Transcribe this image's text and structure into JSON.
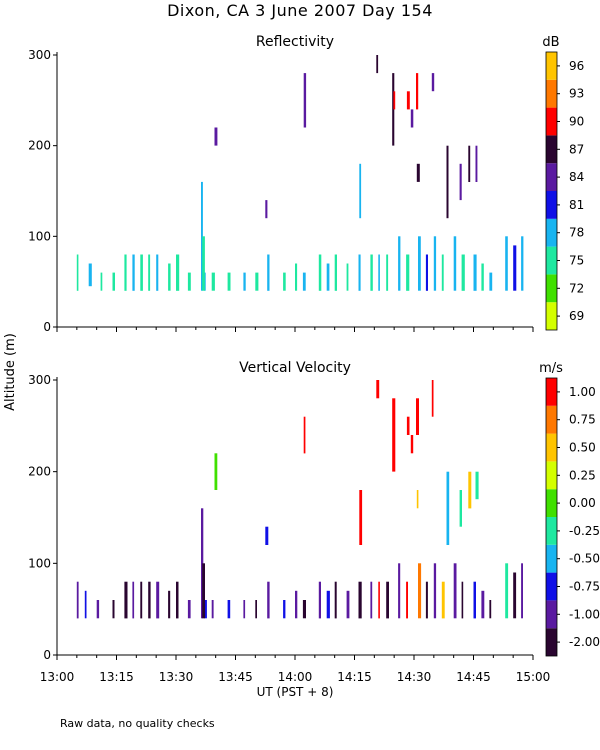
{
  "figure_title": "Dixon, CA   3 June 2007   Day 154",
  "ylabel": "Altitude (m)",
  "xlabel": "UT  (PST + 8)",
  "footer_note": "Raw data, no quality checks",
  "chart_data": [
    {
      "type": "heatmap",
      "title": "Reflectivity",
      "xlabel": "UT  (PST + 8)",
      "ylabel": "Altitude (m)",
      "x_range_min": [
        780,
        900
      ],
      "ylim": [
        0,
        300
      ],
      "y_ticks": [
        0,
        100,
        200,
        300
      ],
      "colorbar": {
        "unit": "dB",
        "levels": [
          69,
          72,
          75,
          78,
          81,
          84,
          87,
          90,
          93,
          96
        ],
        "colors": [
          "#d4ff00",
          "#40e000",
          "#1ee8a0",
          "#18b4f0",
          "#1010e6",
          "#5a1aa0",
          "#2a0530",
          "#ff0000",
          "#ff7800",
          "#ffc400"
        ]
      },
      "clutter_band_range": [
        40,
        80
      ],
      "features": [
        {
          "t": 785,
          "y0": 40,
          "y1": 80,
          "color": "#1ee8a0"
        },
        {
          "t": 788,
          "y0": 45,
          "y1": 70,
          "color": "#18b4f0"
        },
        {
          "t": 791,
          "y0": 40,
          "y1": 60,
          "color": "#1ee8a0"
        },
        {
          "t": 794,
          "y0": 40,
          "y1": 60,
          "color": "#1ee8a0"
        },
        {
          "t": 797,
          "y0": 40,
          "y1": 80,
          "color": "#1ee8a0"
        },
        {
          "t": 799,
          "y0": 40,
          "y1": 80,
          "color": "#18b4f0"
        },
        {
          "t": 801,
          "y0": 40,
          "y1": 80,
          "color": "#1ee8a0"
        },
        {
          "t": 803,
          "y0": 40,
          "y1": 80,
          "color": "#1ee8a0"
        },
        {
          "t": 805,
          "y0": 40,
          "y1": 80,
          "color": "#18b4f0"
        },
        {
          "t": 808,
          "y0": 40,
          "y1": 70,
          "color": "#1ee8a0"
        },
        {
          "t": 810,
          "y0": 40,
          "y1": 80,
          "color": "#1ee8a0"
        },
        {
          "t": 813,
          "y0": 40,
          "y1": 60,
          "color": "#1ee8a0"
        },
        {
          "t": 817,
          "y0": 40,
          "y1": 60,
          "color": "#18b4f0"
        },
        {
          "t": 819,
          "y0": 40,
          "y1": 60,
          "color": "#1ee8a0"
        },
        {
          "t": 823,
          "y0": 40,
          "y1": 60,
          "color": "#1ee8a0"
        },
        {
          "t": 827,
          "y0": 40,
          "y1": 60,
          "color": "#18b4f0"
        },
        {
          "t": 830,
          "y0": 40,
          "y1": 60,
          "color": "#1ee8a0"
        },
        {
          "t": 833,
          "y0": 40,
          "y1": 80,
          "color": "#18b4f0"
        },
        {
          "t": 837,
          "y0": 40,
          "y1": 60,
          "color": "#1ee8a0"
        },
        {
          "t": 840,
          "y0": 40,
          "y1": 70,
          "color": "#1ee8a0"
        },
        {
          "t": 842,
          "y0": 40,
          "y1": 60,
          "color": "#18b4f0"
        },
        {
          "t": 846,
          "y0": 40,
          "y1": 80,
          "color": "#1ee8a0"
        },
        {
          "t": 848,
          "y0": 40,
          "y1": 70,
          "color": "#18b4f0"
        },
        {
          "t": 850,
          "y0": 40,
          "y1": 80,
          "color": "#1ee8a0"
        },
        {
          "t": 853,
          "y0": 40,
          "y1": 70,
          "color": "#1ee8a0"
        },
        {
          "t": 856,
          "y0": 40,
          "y1": 80,
          "color": "#18b4f0"
        },
        {
          "t": 859,
          "y0": 40,
          "y1": 80,
          "color": "#1ee8a0"
        },
        {
          "t": 861,
          "y0": 40,
          "y1": 80,
          "color": "#18b4f0"
        },
        {
          "t": 863,
          "y0": 40,
          "y1": 80,
          "color": "#1ee8a0"
        },
        {
          "t": 866,
          "y0": 40,
          "y1": 100,
          "color": "#18b4f0"
        },
        {
          "t": 868,
          "y0": 40,
          "y1": 80,
          "color": "#1ee8a0"
        },
        {
          "t": 871,
          "y0": 40,
          "y1": 100,
          "color": "#18b4f0"
        },
        {
          "t": 873,
          "y0": 40,
          "y1": 80,
          "color": "#1010e6"
        },
        {
          "t": 875,
          "y0": 40,
          "y1": 100,
          "color": "#18b4f0"
        },
        {
          "t": 877,
          "y0": 40,
          "y1": 80,
          "color": "#1ee8a0"
        },
        {
          "t": 880,
          "y0": 40,
          "y1": 100,
          "color": "#18b4f0"
        },
        {
          "t": 882,
          "y0": 40,
          "y1": 80,
          "color": "#1ee8a0"
        },
        {
          "t": 885,
          "y0": 40,
          "y1": 80,
          "color": "#18b4f0"
        },
        {
          "t": 887,
          "y0": 40,
          "y1": 70,
          "color": "#1ee8a0"
        },
        {
          "t": 889,
          "y0": 40,
          "y1": 60,
          "color": "#18b4f0"
        },
        {
          "t": 893,
          "y0": 40,
          "y1": 100,
          "color": "#18b4f0"
        },
        {
          "t": 895,
          "y0": 40,
          "y1": 90,
          "color": "#1010e6"
        },
        {
          "t": 897,
          "y0": 40,
          "y1": 100,
          "color": "#18b4f0"
        },
        {
          "t": 816.3,
          "y0": 40,
          "y1": 160,
          "color": "#18b4f0"
        },
        {
          "t": 816.6,
          "y0": 40,
          "y1": 100,
          "color": "#1ee8a0"
        },
        {
          "t": 819.7,
          "y0": 200,
          "y1": 220,
          "color": "#5a1aa0"
        },
        {
          "t": 832.5,
          "y0": 120,
          "y1": 140,
          "color": "#5a1aa0"
        },
        {
          "t": 842.2,
          "y0": 220,
          "y1": 280,
          "color": "#5a1aa0"
        },
        {
          "t": 856.2,
          "y0": 120,
          "y1": 180,
          "color": "#18b4f0"
        },
        {
          "t": 860.5,
          "y0": 280,
          "y1": 300,
          "color": "#2a0530"
        },
        {
          "t": 864.5,
          "y0": 200,
          "y1": 280,
          "color": "#2a0530"
        },
        {
          "t": 864.8,
          "y0": 240,
          "y1": 260,
          "color": "#ff0000"
        },
        {
          "t": 868.2,
          "y0": 240,
          "y1": 260,
          "color": "#ff0000"
        },
        {
          "t": 869.2,
          "y0": 220,
          "y1": 240,
          "color": "#5a1aa0"
        },
        {
          "t": 870.5,
          "y0": 240,
          "y1": 280,
          "color": "#ff0000"
        },
        {
          "t": 870.7,
          "y0": 160,
          "y1": 180,
          "color": "#2a0530"
        },
        {
          "t": 874.5,
          "y0": 260,
          "y1": 280,
          "color": "#5a1aa0"
        },
        {
          "t": 878.2,
          "y0": 120,
          "y1": 200,
          "color": "#2a0530"
        },
        {
          "t": 881.5,
          "y0": 140,
          "y1": 180,
          "color": "#5a1aa0"
        },
        {
          "t": 883.7,
          "y0": 160,
          "y1": 200,
          "color": "#2a0530"
        },
        {
          "t": 885.5,
          "y0": 160,
          "y1": 200,
          "color": "#5a1aa0"
        }
      ]
    },
    {
      "type": "heatmap",
      "title": "Vertical Velocity",
      "xlabel": "UT  (PST + 8)",
      "ylabel": "Altitude (m)",
      "x_range_min": [
        780,
        900
      ],
      "ylim": [
        0,
        300
      ],
      "y_ticks": [
        0,
        100,
        200,
        300
      ],
      "x_tick_values_min": [
        780,
        795,
        810,
        825,
        840,
        855,
        870,
        885,
        900
      ],
      "x_tick_labels": [
        "13:00",
        "13:15",
        "13:30",
        "13:45",
        "14:00",
        "14:15",
        "14:30",
        "14:45",
        "15:00"
      ],
      "colorbar": {
        "unit": "m/s",
        "levels": [
          -2.0,
          -1.0,
          -0.75,
          -0.5,
          -0.25,
          0.0,
          0.25,
          0.5,
          0.75,
          1.0
        ],
        "tick_labels": [
          "-2.00",
          "-1.00",
          "-0.75",
          "-0.50",
          "-0.25",
          "0.00",
          "0.25",
          "0.50",
          "0.75",
          "1.00"
        ],
        "colors": [
          "#2a0530",
          "#5a1aa0",
          "#1010e6",
          "#18b4f0",
          "#1ee8a0",
          "#40e000",
          "#d4ff00",
          "#ffc400",
          "#ff7800",
          "#ff0000"
        ]
      },
      "clutter_band_range": [
        40,
        80
      ],
      "features": [
        {
          "t": 785,
          "y0": 40,
          "y1": 80,
          "color": "#5a1aa0"
        },
        {
          "t": 787,
          "y0": 40,
          "y1": 70,
          "color": "#1010e6"
        },
        {
          "t": 790,
          "y0": 40,
          "y1": 60,
          "color": "#5a1aa0"
        },
        {
          "t": 794,
          "y0": 40,
          "y1": 60,
          "color": "#2a0530"
        },
        {
          "t": 797,
          "y0": 40,
          "y1": 80,
          "color": "#2a0530"
        },
        {
          "t": 799,
          "y0": 40,
          "y1": 80,
          "color": "#5a1aa0"
        },
        {
          "t": 801,
          "y0": 40,
          "y1": 80,
          "color": "#2a0530"
        },
        {
          "t": 803,
          "y0": 40,
          "y1": 80,
          "color": "#2a0530"
        },
        {
          "t": 805,
          "y0": 40,
          "y1": 80,
          "color": "#5a1aa0"
        },
        {
          "t": 808,
          "y0": 40,
          "y1": 70,
          "color": "#2a0530"
        },
        {
          "t": 810,
          "y0": 40,
          "y1": 80,
          "color": "#2a0530"
        },
        {
          "t": 813,
          "y0": 40,
          "y1": 60,
          "color": "#5a1aa0"
        },
        {
          "t": 817,
          "y0": 40,
          "y1": 60,
          "color": "#1010e6"
        },
        {
          "t": 819,
          "y0": 40,
          "y1": 60,
          "color": "#5a1aa0"
        },
        {
          "t": 823,
          "y0": 40,
          "y1": 60,
          "color": "#1010e6"
        },
        {
          "t": 827,
          "y0": 40,
          "y1": 60,
          "color": "#5a1aa0"
        },
        {
          "t": 830,
          "y0": 40,
          "y1": 60,
          "color": "#2a0530"
        },
        {
          "t": 833,
          "y0": 40,
          "y1": 80,
          "color": "#5a1aa0"
        },
        {
          "t": 837,
          "y0": 40,
          "y1": 60,
          "color": "#1010e6"
        },
        {
          "t": 840,
          "y0": 40,
          "y1": 70,
          "color": "#5a1aa0"
        },
        {
          "t": 842,
          "y0": 40,
          "y1": 60,
          "color": "#2a0530"
        },
        {
          "t": 846,
          "y0": 40,
          "y1": 80,
          "color": "#5a1aa0"
        },
        {
          "t": 848,
          "y0": 40,
          "y1": 70,
          "color": "#1010e6"
        },
        {
          "t": 850,
          "y0": 40,
          "y1": 80,
          "color": "#2a0530"
        },
        {
          "t": 853,
          "y0": 40,
          "y1": 70,
          "color": "#5a1aa0"
        },
        {
          "t": 856,
          "y0": 40,
          "y1": 80,
          "color": "#2a0530"
        },
        {
          "t": 859,
          "y0": 40,
          "y1": 80,
          "color": "#5a1aa0"
        },
        {
          "t": 861,
          "y0": 40,
          "y1": 80,
          "color": "#ff0000"
        },
        {
          "t": 863,
          "y0": 40,
          "y1": 80,
          "color": "#2a0530"
        },
        {
          "t": 866,
          "y0": 40,
          "y1": 100,
          "color": "#5a1aa0"
        },
        {
          "t": 868,
          "y0": 40,
          "y1": 80,
          "color": "#ff0000"
        },
        {
          "t": 871,
          "y0": 40,
          "y1": 100,
          "color": "#ff7800"
        },
        {
          "t": 873,
          "y0": 40,
          "y1": 80,
          "color": "#2a0530"
        },
        {
          "t": 875,
          "y0": 40,
          "y1": 100,
          "color": "#5a1aa0"
        },
        {
          "t": 877,
          "y0": 40,
          "y1": 80,
          "color": "#ffc400"
        },
        {
          "t": 880,
          "y0": 40,
          "y1": 100,
          "color": "#5a1aa0"
        },
        {
          "t": 882,
          "y0": 40,
          "y1": 80,
          "color": "#2a0530"
        },
        {
          "t": 885,
          "y0": 40,
          "y1": 80,
          "color": "#1010e6"
        },
        {
          "t": 887,
          "y0": 40,
          "y1": 70,
          "color": "#5a1aa0"
        },
        {
          "t": 889,
          "y0": 40,
          "y1": 60,
          "color": "#2a0530"
        },
        {
          "t": 893,
          "y0": 40,
          "y1": 100,
          "color": "#1ee8a0"
        },
        {
          "t": 895,
          "y0": 40,
          "y1": 90,
          "color": "#2a0530"
        },
        {
          "t": 897,
          "y0": 40,
          "y1": 100,
          "color": "#5a1aa0"
        },
        {
          "t": 816.3,
          "y0": 40,
          "y1": 160,
          "color": "#5a1aa0"
        },
        {
          "t": 816.6,
          "y0": 40,
          "y1": 100,
          "color": "#2a0530"
        },
        {
          "t": 819.7,
          "y0": 180,
          "y1": 220,
          "color": "#40e000"
        },
        {
          "t": 832.5,
          "y0": 120,
          "y1": 140,
          "color": "#1010e6"
        },
        {
          "t": 842.2,
          "y0": 220,
          "y1": 260,
          "color": "#ff0000"
        },
        {
          "t": 856.2,
          "y0": 120,
          "y1": 180,
          "color": "#ff0000"
        },
        {
          "t": 860.5,
          "y0": 280,
          "y1": 300,
          "color": "#ff0000"
        },
        {
          "t": 864.5,
          "y0": 200,
          "y1": 280,
          "color": "#ff0000"
        },
        {
          "t": 868.2,
          "y0": 240,
          "y1": 260,
          "color": "#ff0000"
        },
        {
          "t": 869.2,
          "y0": 220,
          "y1": 240,
          "color": "#ff0000"
        },
        {
          "t": 870.5,
          "y0": 240,
          "y1": 280,
          "color": "#ff0000"
        },
        {
          "t": 870.7,
          "y0": 160,
          "y1": 180,
          "color": "#ffc400"
        },
        {
          "t": 874.5,
          "y0": 260,
          "y1": 300,
          "color": "#ff0000"
        },
        {
          "t": 878.2,
          "y0": 120,
          "y1": 200,
          "color": "#18b4f0"
        },
        {
          "t": 881.5,
          "y0": 140,
          "y1": 180,
          "color": "#1ee8a0"
        },
        {
          "t": 883.7,
          "y0": 160,
          "y1": 200,
          "color": "#ffc400"
        },
        {
          "t": 885.5,
          "y0": 170,
          "y1": 200,
          "color": "#1ee8a0"
        }
      ]
    }
  ]
}
